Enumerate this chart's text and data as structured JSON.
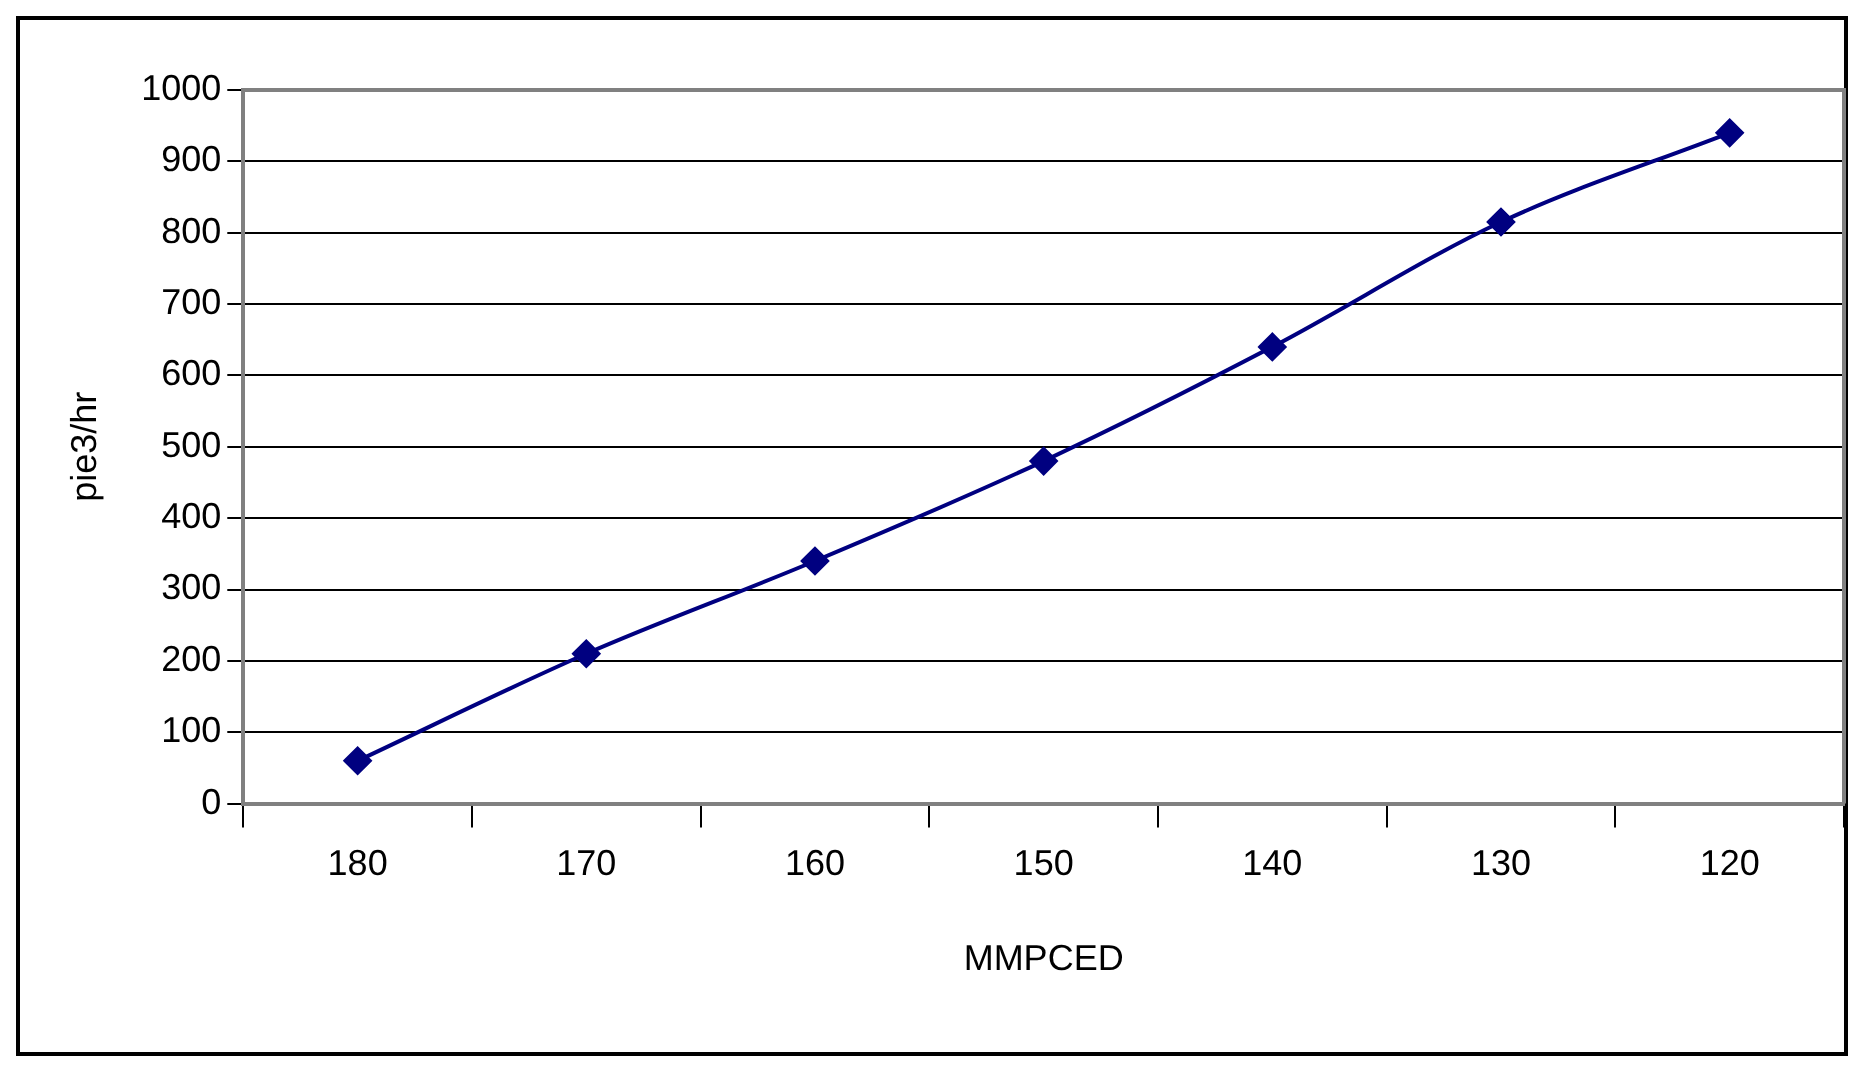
{
  "chart_data": {
    "type": "line",
    "xlabel": "MMPCED",
    "ylabel": "pie3/hr",
    "categories": [
      "180",
      "170",
      "160",
      "150",
      "140",
      "130",
      "120"
    ],
    "series": [
      {
        "color": "#000080",
        "values": [
          60,
          210,
          340,
          480,
          640,
          815,
          940
        ]
      }
    ],
    "ylim": [
      0,
      1000
    ],
    "yticks": [
      0,
      100,
      200,
      300,
      400,
      500,
      600,
      700,
      800,
      900,
      1000
    ],
    "grid": "y",
    "legend": false,
    "marker": "diamond",
    "line_style": "solid"
  }
}
